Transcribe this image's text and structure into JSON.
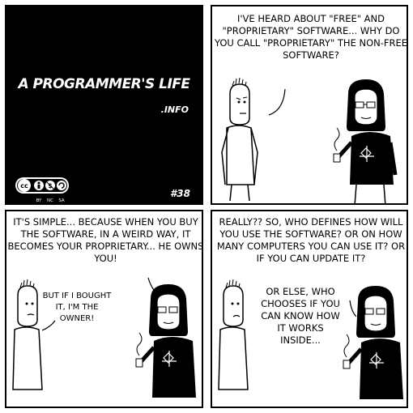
{
  "comic": {
    "title": "A PROGRAMMER'S LIFE",
    "domain": ".INFO",
    "episode": "#38",
    "license": {
      "badge": "cc",
      "terms": [
        "BY",
        "NC",
        "SA"
      ]
    }
  },
  "panels": {
    "p2": {
      "text": "I'VE HEARD ABOUT \"FREE\" AND \"PROPRIETARY\" SOFTWARE... WHY DO YOU CALL \"PROPRIETARY\" THE NON-FREE SOFTWARE?"
    },
    "p3": {
      "text": "IT'S SIMPLE... BECAUSE WHEN YOU BUY THE SOFTWARE, IN A WEIRD WAY, IT BECOMES YOUR PROPRIETARY... HE OWNS YOU!",
      "reply": "BUT IF I BOUGHT IT, I'M THE OWNER!"
    },
    "p4": {
      "text": "REALLY?? SO, WHO DEFINES HOW WILL YOU USE THE SOFTWARE? OR ON HOW MANY COMPUTERS YOU CAN USE IT? OR IF YOU CAN UPDATE IT?",
      "text2": "OR ELSE, WHO CHOOSES IF YOU CAN KNOW HOW IT WORKS INSIDE..."
    }
  }
}
